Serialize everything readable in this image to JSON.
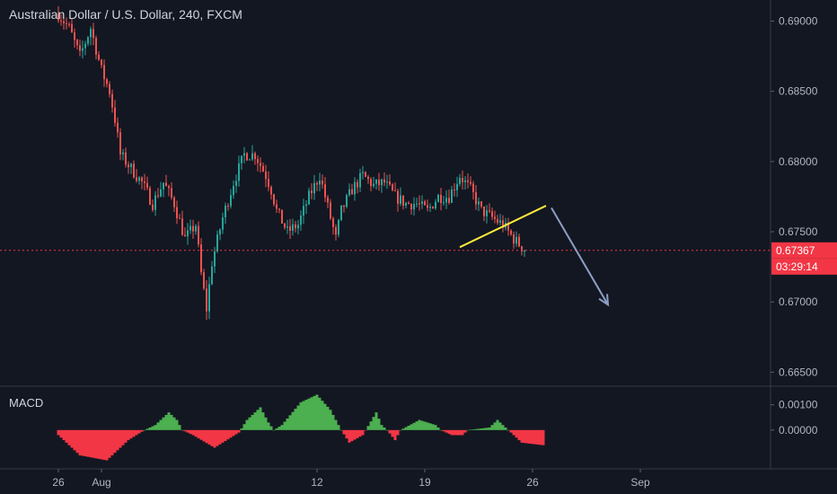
{
  "chart_data": {
    "type": "candlestick",
    "title": "Australian Dollar / U.S. Dollar, 240, FXCM",
    "price_axis": {
      "ticks": [
        "0.69000",
        "0.68500",
        "0.68000",
        "0.67500",
        "0.67000",
        "0.66500"
      ],
      "tick_values": [
        0.69,
        0.685,
        0.68,
        0.675,
        0.67,
        0.665
      ],
      "ylim": [
        0.664,
        0.6915
      ]
    },
    "time_axis": {
      "ticks": [
        "26",
        "Aug",
        "12",
        "19",
        "26",
        "Sep"
      ],
      "tick_bar_index": [
        0,
        16,
        96,
        136,
        176,
        216
      ]
    },
    "last_price": {
      "value": 0.67367,
      "label": "0.67367",
      "countdown": "03:29:14",
      "color": "#f23645"
    },
    "bars_per_day": 5.714,
    "price_path": [
      [
        0,
        0.6905
      ],
      [
        4,
        0.6895
      ],
      [
        8,
        0.6875
      ],
      [
        12,
        0.6895
      ],
      [
        16,
        0.6865
      ],
      [
        19,
        0.685
      ],
      [
        21,
        0.683
      ],
      [
        23,
        0.6805
      ],
      [
        27,
        0.6795
      ],
      [
        31,
        0.6785
      ],
      [
        35,
        0.677
      ],
      [
        39,
        0.6785
      ],
      [
        43,
        0.677
      ],
      [
        47,
        0.6745
      ],
      [
        51,
        0.6755
      ],
      [
        53,
        0.672
      ],
      [
        55,
        0.6695
      ],
      [
        57,
        0.6728
      ],
      [
        61,
        0.676
      ],
      [
        65,
        0.6785
      ],
      [
        69,
        0.6805
      ],
      [
        73,
        0.6805
      ],
      [
        77,
        0.679
      ],
      [
        79,
        0.678
      ],
      [
        81,
        0.6765
      ],
      [
        85,
        0.675
      ],
      [
        89,
        0.6755
      ],
      [
        93,
        0.6775
      ],
      [
        97,
        0.679
      ],
      [
        101,
        0.676
      ],
      [
        103,
        0.6745
      ],
      [
        105,
        0.6765
      ],
      [
        109,
        0.678
      ],
      [
        113,
        0.679
      ],
      [
        117,
        0.6783
      ],
      [
        121,
        0.6785
      ],
      [
        125,
        0.6775
      ],
      [
        129,
        0.677
      ],
      [
        133,
        0.677
      ],
      [
        137,
        0.6765
      ],
      [
        141,
        0.6775
      ],
      [
        145,
        0.6775
      ],
      [
        149,
        0.679
      ],
      [
        153,
        0.678
      ],
      [
        157,
        0.6765
      ],
      [
        161,
        0.676
      ],
      [
        165,
        0.6755
      ],
      [
        169,
        0.6745
      ],
      [
        173,
        0.6737
      ]
    ],
    "trendline": {
      "color": "#ffeb3b",
      "start": [
        149,
        0.6739
      ],
      "end": [
        181,
        0.67685
      ]
    },
    "forecast_arrow": {
      "color": "#8c9ec5",
      "start": [
        183,
        0.6767
      ],
      "end": [
        204,
        0.6698
      ]
    },
    "macd": {
      "label": "MACD",
      "ticks": [
        "0.00100",
        "0.00000"
      ],
      "tick_values": [
        0.001,
        0.0
      ],
      "ylim": [
        -0.0015,
        0.0017
      ],
      "hist_path": [
        [
          0,
          -0.0002
        ],
        [
          8,
          -0.001
        ],
        [
          18,
          -0.0012
        ],
        [
          26,
          -0.0004
        ],
        [
          32,
          0.0
        ],
        [
          36,
          0.0002
        ],
        [
          41,
          0.0007
        ],
        [
          44,
          0.0004
        ],
        [
          46,
          0.0
        ],
        [
          50,
          -0.0002
        ],
        [
          58,
          -0.0007
        ],
        [
          64,
          -0.0003
        ],
        [
          67,
          -0.0001
        ],
        [
          70,
          0.0004
        ],
        [
          75,
          0.0009
        ],
        [
          78,
          0.0003
        ],
        [
          80,
          0.0
        ],
        [
          83,
          0.0002
        ],
        [
          90,
          0.0011
        ],
        [
          96,
          0.0014
        ],
        [
          101,
          0.0008
        ],
        [
          105,
          0.0
        ],
        [
          108,
          -0.0005
        ],
        [
          113,
          -0.0002
        ],
        [
          118,
          0.0007
        ],
        [
          120,
          0.0002
        ],
        [
          122,
          0.0
        ],
        [
          125,
          -0.0004
        ],
        [
          127,
          0.0
        ],
        [
          134,
          0.0004
        ],
        [
          140,
          0.0002
        ],
        [
          142,
          0.0
        ],
        [
          146,
          -0.0002
        ],
        [
          150,
          -0.0002
        ],
        [
          152,
          0.0
        ],
        [
          160,
          0.0001
        ],
        [
          163,
          0.0004
        ],
        [
          167,
          0.0
        ],
        [
          172,
          -0.0005
        ],
        [
          180,
          -0.0006
        ]
      ],
      "positive_color": "#4caf50",
      "negative_color": "#f23645"
    },
    "colors": {
      "background": "#131722",
      "up": "#26a69a",
      "down": "#ef5350",
      "grid": "#2a2e39"
    },
    "grid": false
  }
}
